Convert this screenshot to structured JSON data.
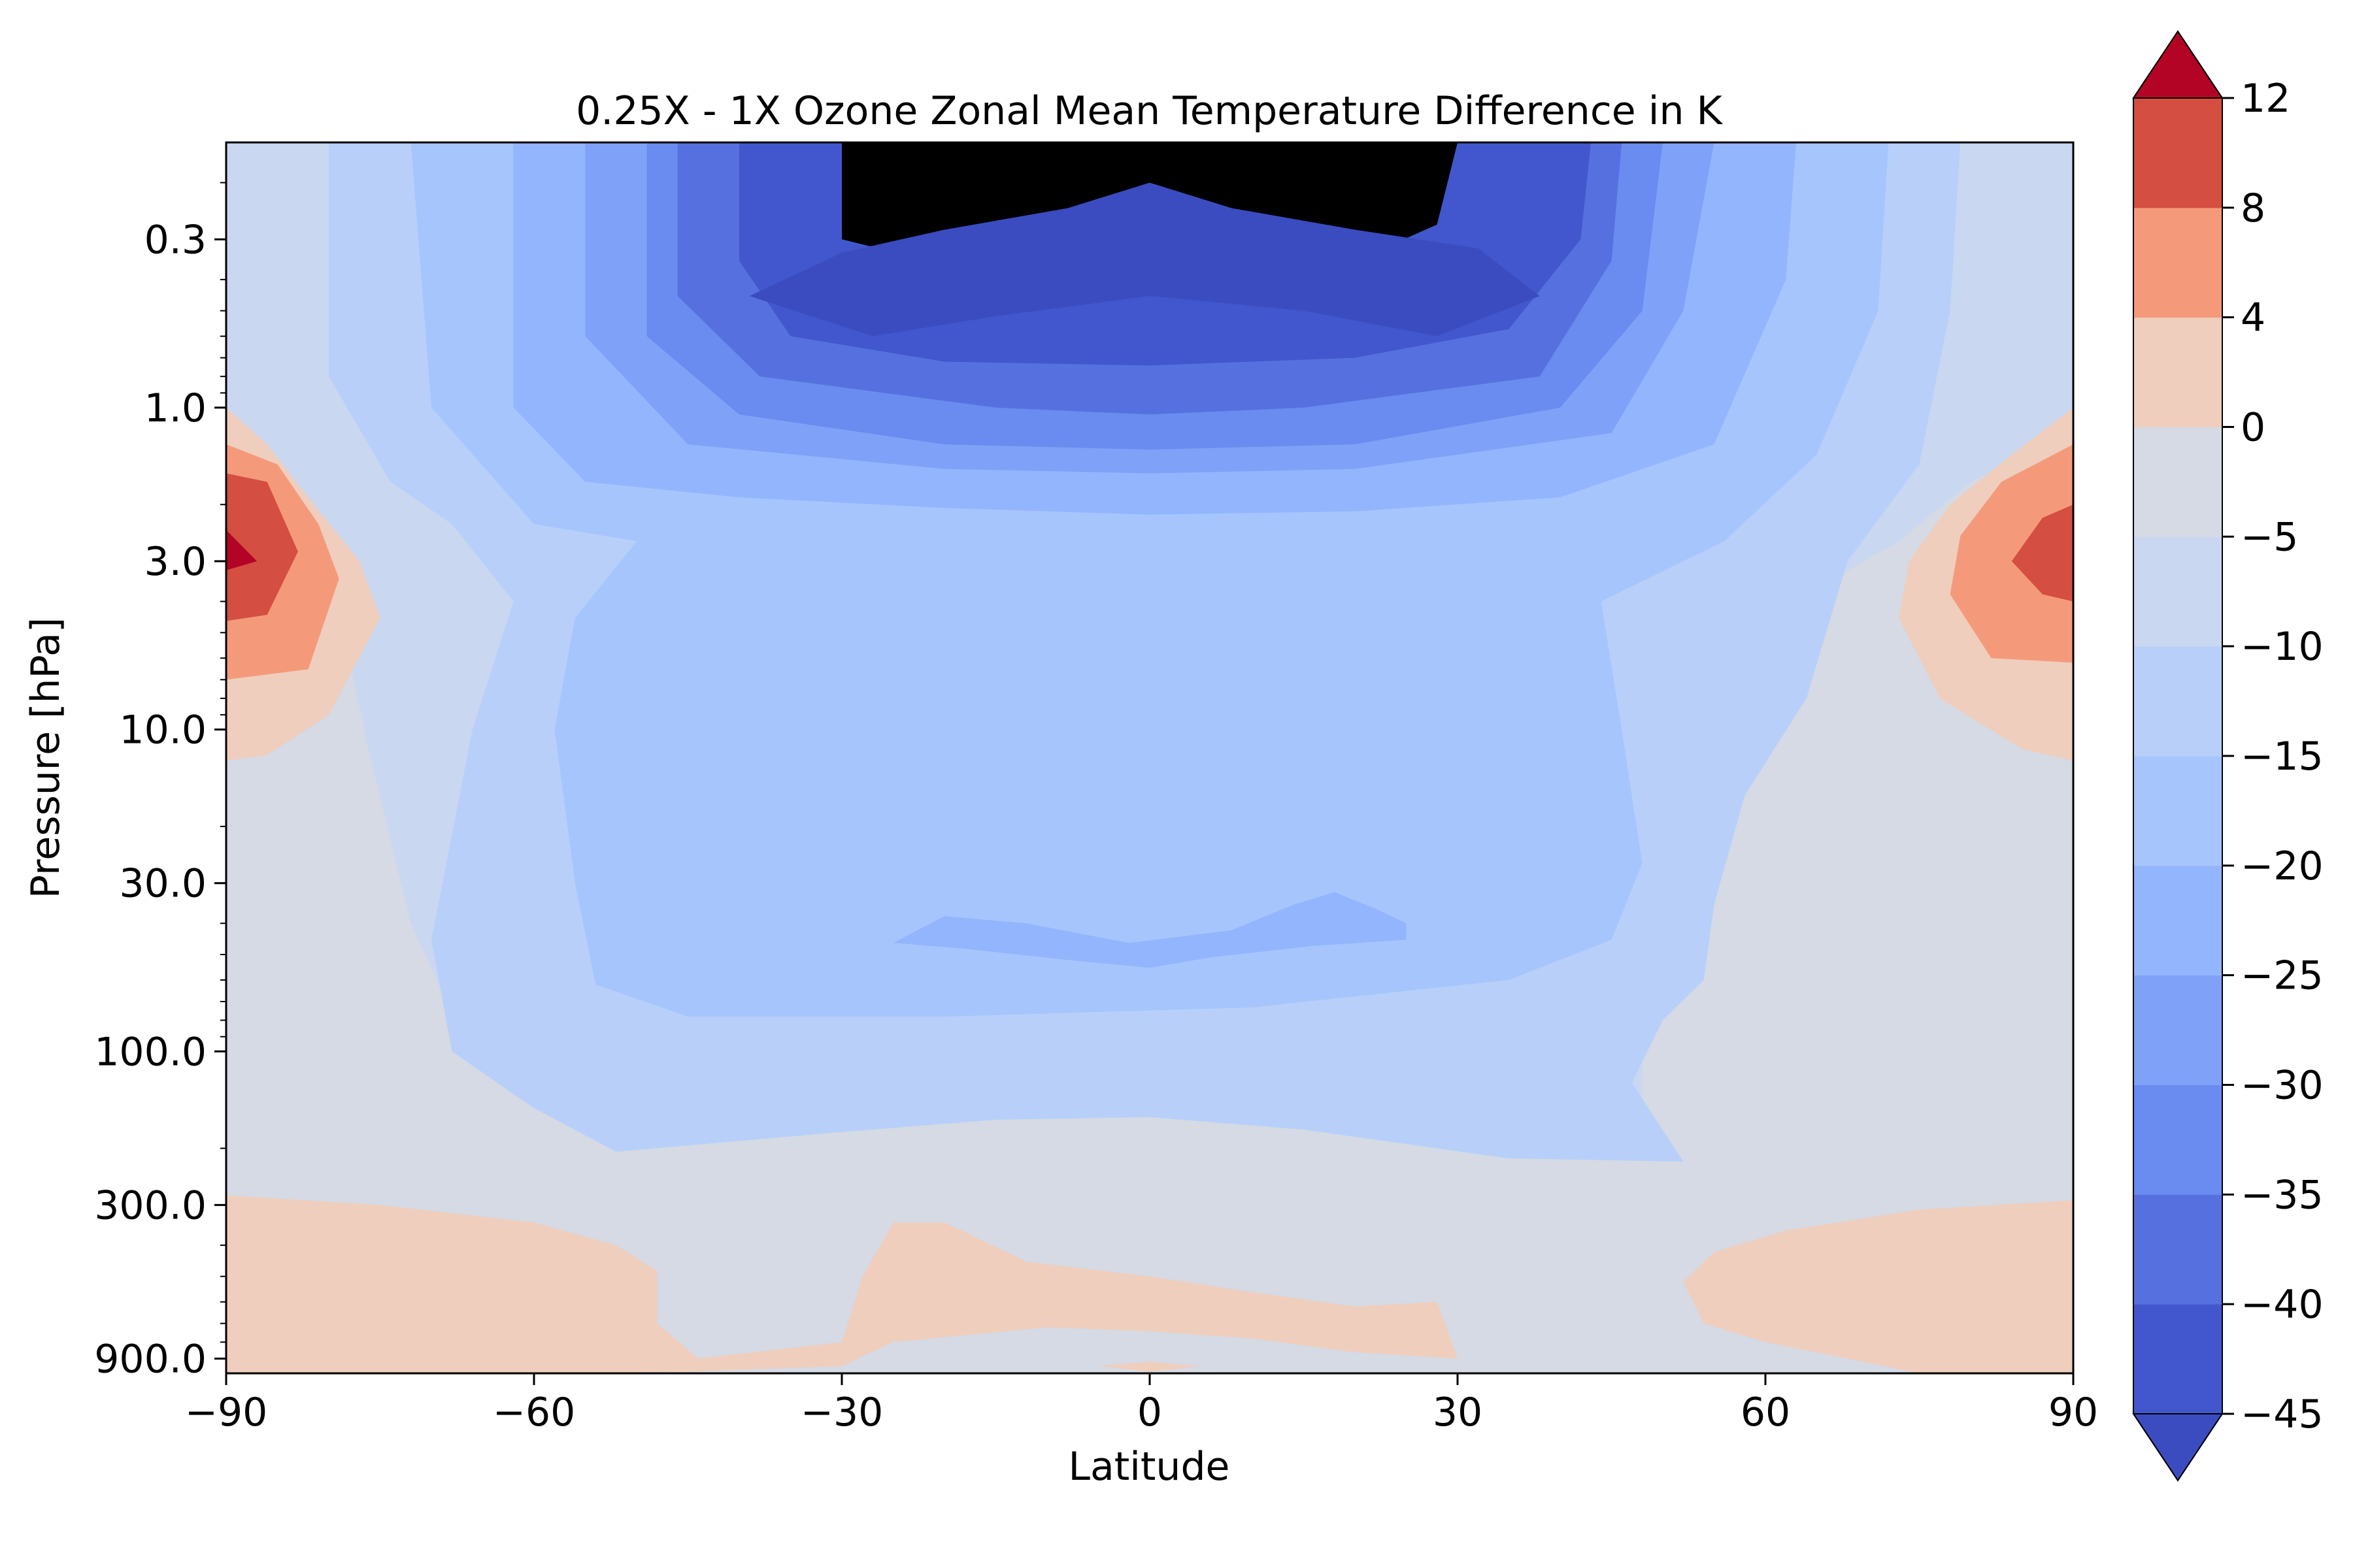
{
  "chart_data": {
    "type": "contourf",
    "title": "0.25X - 1X Ozone Zonal Mean Temperature Difference in K",
    "xlabel": "Latitude",
    "ylabel": "Pressure [hPa]",
    "xlim": [
      -90,
      90
    ],
    "ylim": [
      1000,
      0.15
    ],
    "yscale": "log",
    "x_ticks": [
      "−90",
      "−60",
      "−30",
      "0",
      "30",
      "60",
      "90"
    ],
    "x_tick_values": [
      -90,
      -60,
      -30,
      0,
      30,
      60,
      90
    ],
    "y_ticks": [
      "0.3",
      "1.0",
      "3.0",
      "10.0",
      "30.0",
      "100.0",
      "300.0",
      "900.0"
    ],
    "y_tick_values": [
      0.3,
      1.0,
      3.0,
      10.0,
      30.0,
      100.0,
      300.0,
      900.0
    ],
    "colorbar": {
      "levels": [
        -45,
        -40,
        -35,
        -30,
        -25,
        -20,
        -15,
        -10,
        -5,
        0,
        4,
        8,
        12
      ],
      "tick_labels": [
        "−45",
        "−40",
        "−35",
        "−30",
        "−25",
        "−20",
        "−15",
        "−10",
        "−5",
        "0",
        "4",
        "8",
        "12"
      ],
      "colors": [
        "#4257cd",
        "#5671df",
        "#6a8bef",
        "#7fa1f7",
        "#93b5fe",
        "#a7c5fd",
        "#b8d0f9",
        "#c9d7f0",
        "#d5dae4",
        "#efcebd",
        "#f49a7b",
        "#d44e41"
      ],
      "extend": "both",
      "under_color": "#3b4cc0",
      "over_color": "#b40426"
    },
    "regions": [
      {
        "value_range": [
          -5,
          0
        ],
        "where": "background / polar columns and lower troposphere"
      },
      {
        "value_range": [
          -45,
          -40
        ],
        "where": "upper stratosphere core, ~0.2–0.6 hPa, 40S–38N"
      },
      {
        "value_range": [
          0,
          12
        ],
        "where": "polar stratosphere maxima near 3 hPa at 90S and 90N"
      },
      {
        "value_range": [
          0,
          4
        ],
        "where": "lower troposphere, 300–1000 hPa"
      }
    ]
  }
}
